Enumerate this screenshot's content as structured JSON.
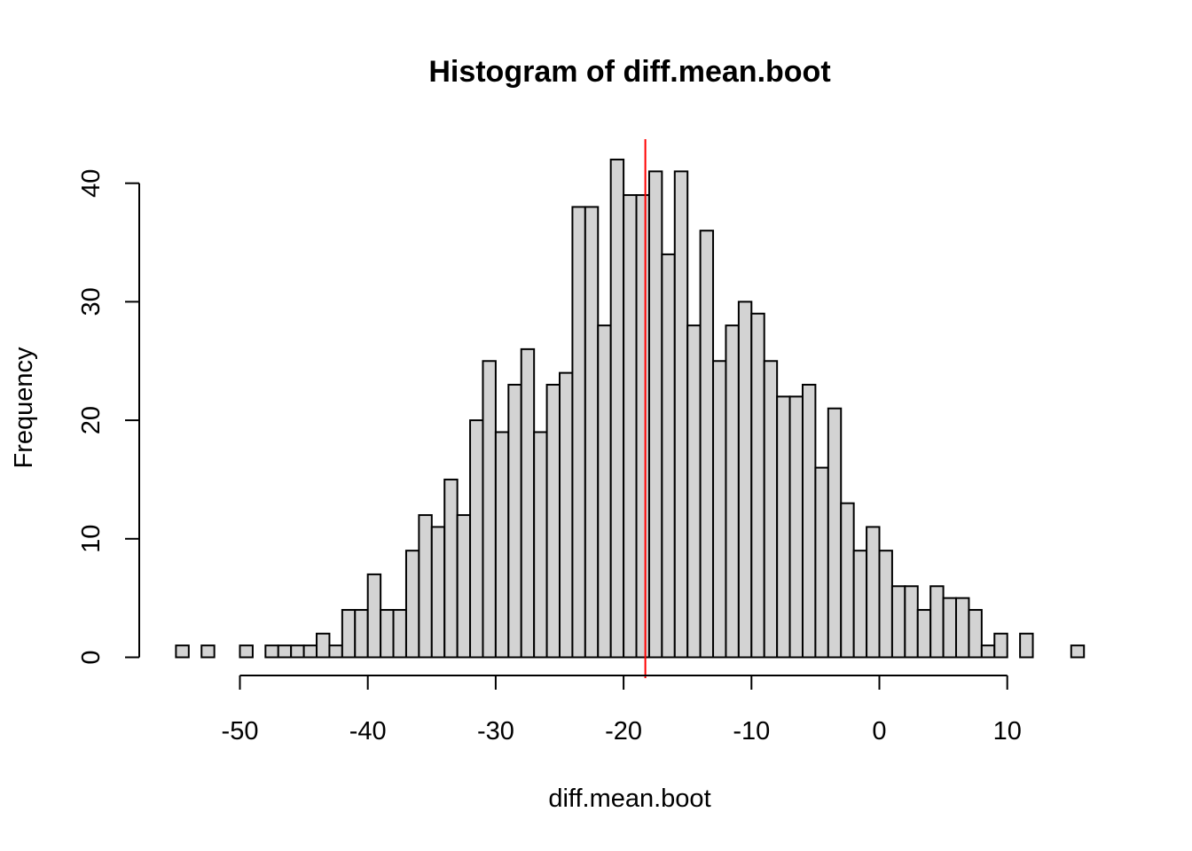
{
  "chart_data": {
    "type": "bar",
    "title": "Histogram of diff.mean.boot",
    "xlabel": "diff.mean.boot",
    "ylabel": "Frequency",
    "xlim": [
      -55,
      16
    ],
    "ylim": [
      0,
      42
    ],
    "bin_width": 1,
    "bin_start": -55,
    "counts": [
      1,
      0,
      1,
      0,
      0,
      1,
      0,
      1,
      1,
      1,
      1,
      2,
      1,
      4,
      4,
      7,
      4,
      4,
      9,
      12,
      11,
      15,
      12,
      20,
      25,
      19,
      23,
      26,
      19,
      23,
      24,
      38,
      38,
      28,
      42,
      39,
      39,
      41,
      34,
      41,
      28,
      36,
      25,
      28,
      30,
      29,
      25,
      22,
      22,
      23,
      16,
      21,
      13,
      9,
      11,
      9,
      6,
      6,
      4,
      6,
      5,
      5,
      4,
      1,
      2,
      0,
      2,
      0,
      0,
      0,
      1
    ],
    "x_ticks": [
      -50,
      -40,
      -30,
      -20,
      -10,
      0,
      10
    ],
    "x_tick_labels": [
      "-50",
      "-40",
      "-30",
      "-20",
      "-10",
      "0",
      "10"
    ],
    "y_ticks": [
      0,
      10,
      20,
      30,
      40
    ],
    "y_tick_labels": [
      "0",
      "10",
      "20",
      "30",
      "40"
    ],
    "reference_line": {
      "x": -18.3,
      "color": "#ff0000"
    },
    "bar_fill": "#d3d3d3",
    "grid": false
  }
}
